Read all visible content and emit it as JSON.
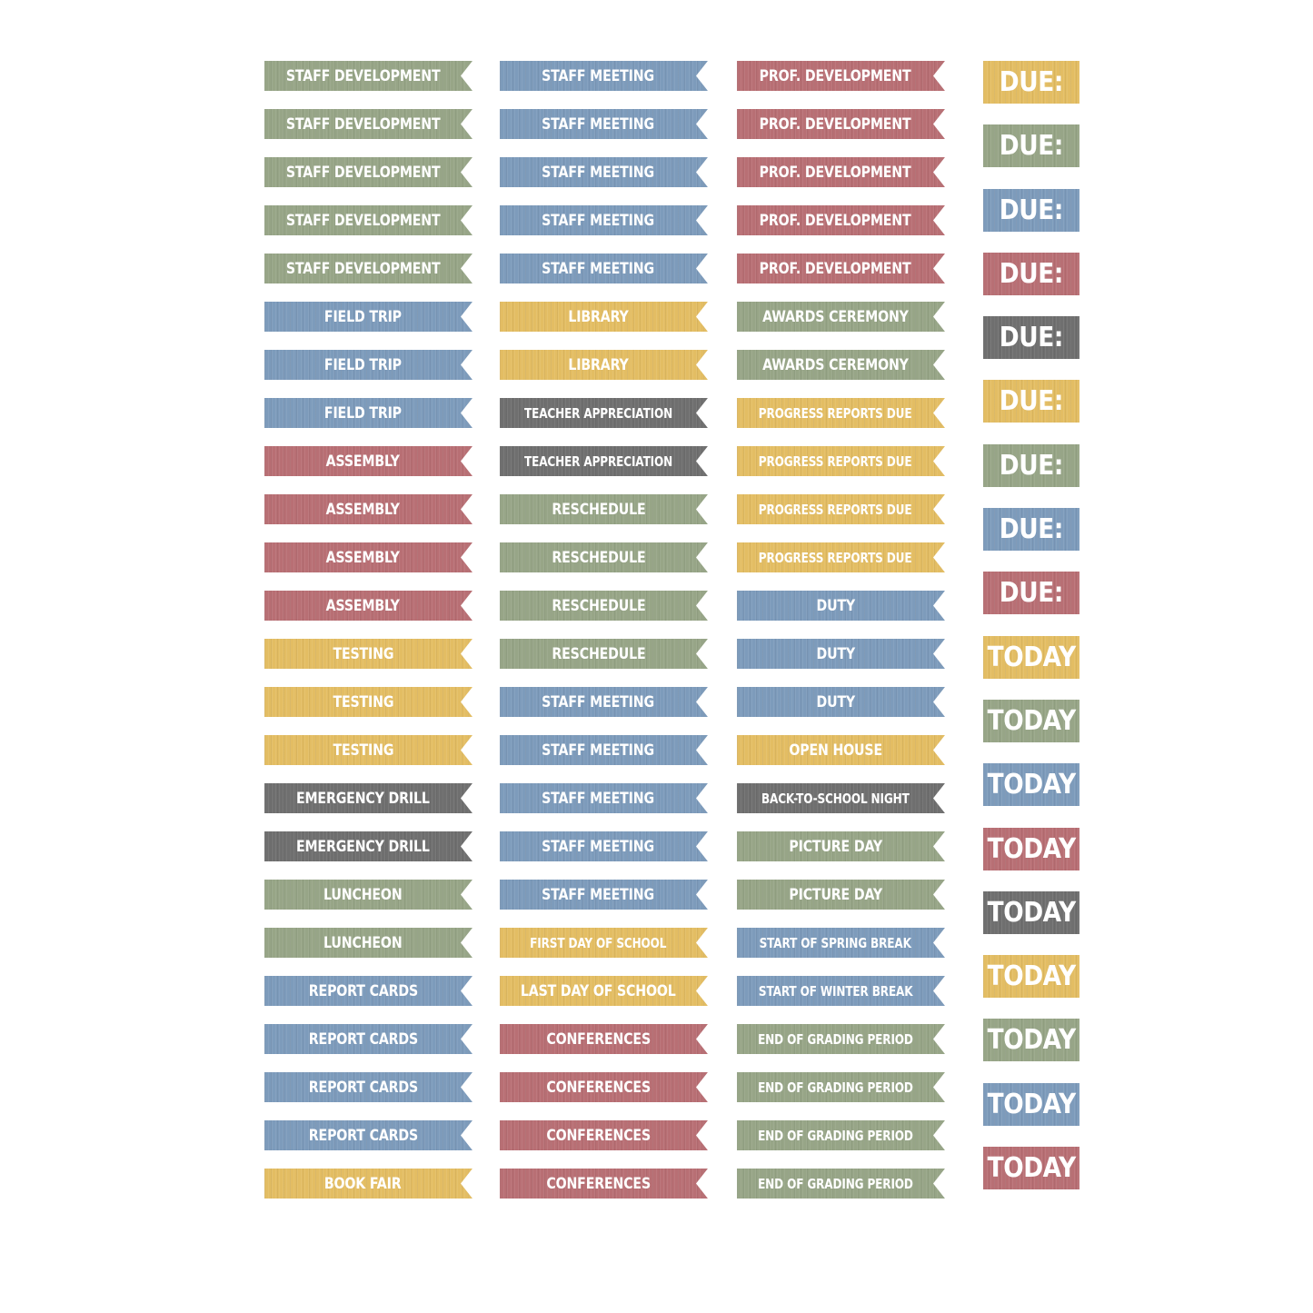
{
  "palette": {
    "sage": "#97a587",
    "blue": "#7d9bbb",
    "rose": "#b86f74",
    "gold": "#e3bd63",
    "gray": "#6f6f6f"
  },
  "columns": [
    {
      "stickers": [
        {
          "label": "STAFF DEVELOPMENT",
          "color": "sage"
        },
        {
          "label": "STAFF DEVELOPMENT",
          "color": "sage"
        },
        {
          "label": "STAFF DEVELOPMENT",
          "color": "sage"
        },
        {
          "label": "STAFF DEVELOPMENT",
          "color": "sage"
        },
        {
          "label": "STAFF DEVELOPMENT",
          "color": "sage"
        },
        {
          "label": "FIELD TRIP",
          "color": "blue"
        },
        {
          "label": "FIELD TRIP",
          "color": "blue"
        },
        {
          "label": "FIELD TRIP",
          "color": "blue"
        },
        {
          "label": "ASSEMBLY",
          "color": "rose"
        },
        {
          "label": "ASSEMBLY",
          "color": "rose"
        },
        {
          "label": "ASSEMBLY",
          "color": "rose"
        },
        {
          "label": "ASSEMBLY",
          "color": "rose"
        },
        {
          "label": "TESTING",
          "color": "gold"
        },
        {
          "label": "TESTING",
          "color": "gold"
        },
        {
          "label": "TESTING",
          "color": "gold"
        },
        {
          "label": "EMERGENCY DRILL",
          "color": "gray"
        },
        {
          "label": "EMERGENCY DRILL",
          "color": "gray"
        },
        {
          "label": "LUNCHEON",
          "color": "sage"
        },
        {
          "label": "LUNCHEON",
          "color": "sage"
        },
        {
          "label": "REPORT CARDS",
          "color": "blue"
        },
        {
          "label": "REPORT CARDS",
          "color": "blue"
        },
        {
          "label": "REPORT CARDS",
          "color": "blue"
        },
        {
          "label": "REPORT CARDS",
          "color": "blue"
        },
        {
          "label": "BOOK FAIR",
          "color": "gold"
        }
      ]
    },
    {
      "stickers": [
        {
          "label": "STAFF MEETING",
          "color": "blue"
        },
        {
          "label": "STAFF MEETING",
          "color": "blue"
        },
        {
          "label": "STAFF MEETING",
          "color": "blue"
        },
        {
          "label": "STAFF MEETING",
          "color": "blue"
        },
        {
          "label": "STAFF MEETING",
          "color": "blue"
        },
        {
          "label": "LIBRARY",
          "color": "gold"
        },
        {
          "label": "LIBRARY",
          "color": "gold"
        },
        {
          "label": "TEACHER APPRECIATION",
          "color": "gray"
        },
        {
          "label": "TEACHER APPRECIATION",
          "color": "gray"
        },
        {
          "label": "RESCHEDULE",
          "color": "sage"
        },
        {
          "label": "RESCHEDULE",
          "color": "sage"
        },
        {
          "label": "RESCHEDULE",
          "color": "sage"
        },
        {
          "label": "RESCHEDULE",
          "color": "sage"
        },
        {
          "label": "STAFF MEETING",
          "color": "blue"
        },
        {
          "label": "STAFF MEETING",
          "color": "blue"
        },
        {
          "label": "STAFF MEETING",
          "color": "blue"
        },
        {
          "label": "STAFF MEETING",
          "color": "blue"
        },
        {
          "label": "STAFF MEETING",
          "color": "blue"
        },
        {
          "label": "FIRST DAY OF SCHOOL",
          "color": "gold"
        },
        {
          "label": "LAST DAY OF SCHOOL",
          "color": "gold"
        },
        {
          "label": "CONFERENCES",
          "color": "rose"
        },
        {
          "label": "CONFERENCES",
          "color": "rose"
        },
        {
          "label": "CONFERENCES",
          "color": "rose"
        },
        {
          "label": "CONFERENCES",
          "color": "rose"
        }
      ]
    },
    {
      "stickers": [
        {
          "label": "PROF. DEVELOPMENT",
          "color": "rose"
        },
        {
          "label": "PROF. DEVELOPMENT",
          "color": "rose"
        },
        {
          "label": "PROF. DEVELOPMENT",
          "color": "rose"
        },
        {
          "label": "PROF. DEVELOPMENT",
          "color": "rose"
        },
        {
          "label": "PROF. DEVELOPMENT",
          "color": "rose"
        },
        {
          "label": "AWARDS CEREMONY",
          "color": "sage"
        },
        {
          "label": "AWARDS CEREMONY",
          "color": "sage"
        },
        {
          "label": "PROGRESS REPORTS DUE",
          "color": "gold"
        },
        {
          "label": "PROGRESS REPORTS DUE",
          "color": "gold"
        },
        {
          "label": "PROGRESS REPORTS DUE",
          "color": "gold"
        },
        {
          "label": "PROGRESS REPORTS DUE",
          "color": "gold"
        },
        {
          "label": "DUTY",
          "color": "blue"
        },
        {
          "label": "DUTY",
          "color": "blue"
        },
        {
          "label": "DUTY",
          "color": "blue"
        },
        {
          "label": "OPEN HOUSE",
          "color": "gold"
        },
        {
          "label": "BACK-TO-SCHOOL NIGHT",
          "color": "gray"
        },
        {
          "label": "PICTURE DAY",
          "color": "sage"
        },
        {
          "label": "PICTURE DAY",
          "color": "sage"
        },
        {
          "label": "START OF SPRING BREAK",
          "color": "blue"
        },
        {
          "label": "START OF WINTER BREAK",
          "color": "blue"
        },
        {
          "label": "END OF GRADING PERIOD",
          "color": "sage"
        },
        {
          "label": "END OF GRADING PERIOD",
          "color": "sage"
        },
        {
          "label": "END OF GRADING PERIOD",
          "color": "sage"
        },
        {
          "label": "END OF GRADING PERIOD",
          "color": "sage"
        }
      ]
    }
  ],
  "tiles": [
    {
      "label": "DUE:",
      "color": "gold"
    },
    {
      "label": "DUE:",
      "color": "sage"
    },
    {
      "label": "DUE:",
      "color": "blue"
    },
    {
      "label": "DUE:",
      "color": "rose"
    },
    {
      "label": "DUE:",
      "color": "gray"
    },
    {
      "label": "DUE:",
      "color": "gold"
    },
    {
      "label": "DUE:",
      "color": "sage"
    },
    {
      "label": "DUE:",
      "color": "blue"
    },
    {
      "label": "DUE:",
      "color": "rose"
    },
    {
      "label": "TODAY",
      "color": "gold"
    },
    {
      "label": "TODAY",
      "color": "sage"
    },
    {
      "label": "TODAY",
      "color": "blue"
    },
    {
      "label": "TODAY",
      "color": "rose"
    },
    {
      "label": "TODAY",
      "color": "gray"
    },
    {
      "label": "TODAY",
      "color": "gold"
    },
    {
      "label": "TODAY",
      "color": "sage"
    },
    {
      "label": "TODAY",
      "color": "blue"
    },
    {
      "label": "TODAY",
      "color": "rose"
    }
  ]
}
